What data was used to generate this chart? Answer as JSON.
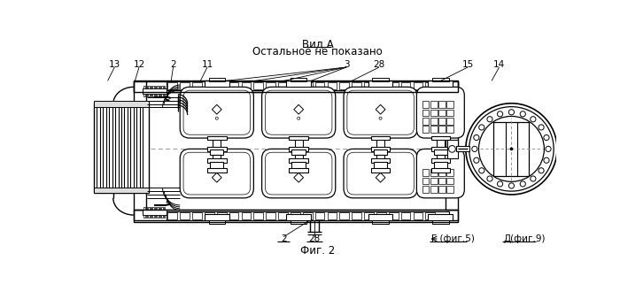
{
  "title1": "Вид А",
  "title2": "Остальное не показано",
  "fig_label": "Фиг. 2",
  "bg_color": "#ffffff",
  "line_color": "#000000"
}
